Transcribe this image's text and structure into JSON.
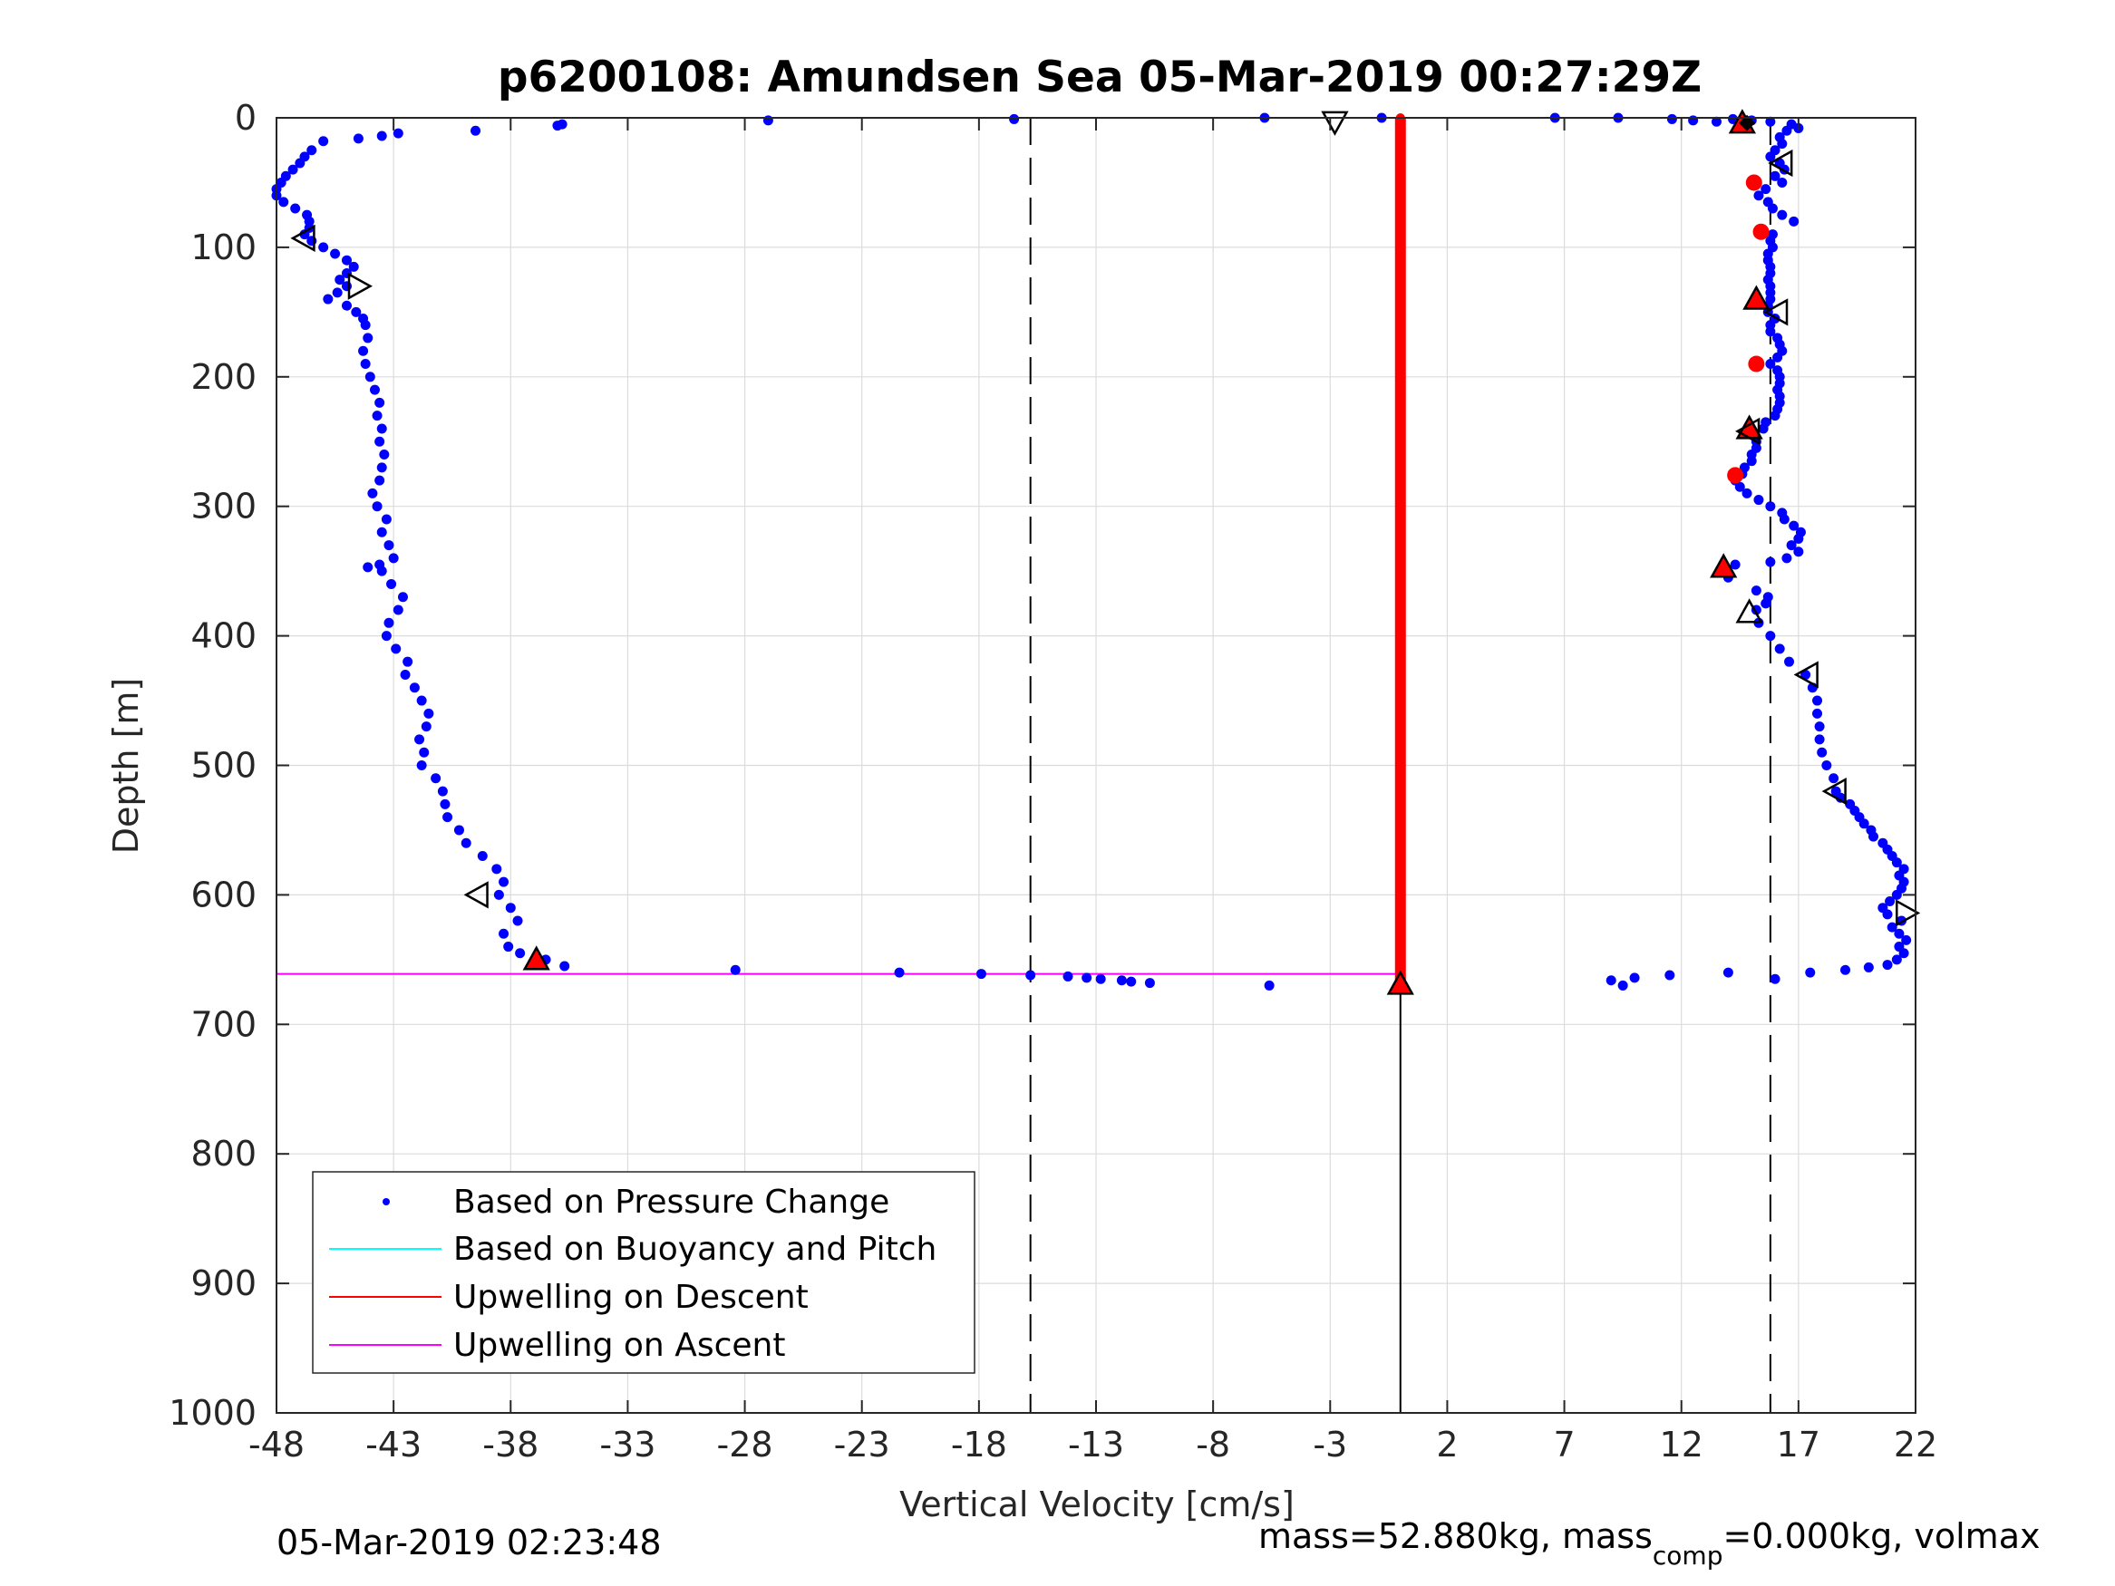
{
  "chart_data": {
    "type": "scatter",
    "title": "p6200108: Amundsen Sea 05-Mar-2019 00:27:29Z",
    "xlabel": "Vertical Velocity [cm/s]",
    "ylabel": "Depth [m]",
    "xlim": [
      -48,
      22
    ],
    "ylim": [
      0,
      1000
    ],
    "y_reversed": true,
    "x_ticks": [
      "-48",
      "-43",
      "-38",
      "-33",
      "-28",
      "-23",
      "-18",
      "-13",
      "-8",
      "-3",
      "2",
      "7",
      "12",
      "17",
      "22"
    ],
    "y_ticks": [
      "0",
      "100",
      "200",
      "300",
      "400",
      "500",
      "600",
      "700",
      "800",
      "900",
      "1000"
    ],
    "grid": true,
    "legend_position": "bottom-left",
    "colors": {
      "pressure": "#0000ff",
      "buoyancy": "#00ffff",
      "up_descent": "#ff0000",
      "up_ascent": "#ff00ff",
      "marker_fill": "#ff0000",
      "grid": "#dcdcdc"
    },
    "legend": [
      {
        "label": "Based on Pressure Change",
        "style": "dot",
        "color": "#0000ff"
      },
      {
        "label": "Based on Buoyancy and Pitch",
        "style": "line",
        "color": "#00ffff"
      },
      {
        "label": "Upwelling on Descent",
        "style": "line",
        "color": "#ff0000"
      },
      {
        "label": "Upwelling on Ascent",
        "style": "line",
        "color": "#ff00ff"
      }
    ],
    "reference_lines": [
      {
        "x": -15.8,
        "style": "dashed"
      },
      {
        "x": 15.8,
        "style": "dashed"
      }
    ],
    "descent_profile": [
      [
        -36,
        6
      ],
      [
        -39.5,
        10
      ],
      [
        -42.8,
        12
      ],
      [
        -43.5,
        14
      ],
      [
        -44.5,
        16
      ],
      [
        -46,
        18
      ],
      [
        -46.5,
        25
      ],
      [
        -46.8,
        30
      ],
      [
        -47,
        35
      ],
      [
        -47.3,
        40
      ],
      [
        -47.6,
        45
      ],
      [
        -47.8,
        50
      ],
      [
        -48,
        55
      ],
      [
        -48,
        60
      ],
      [
        -47.7,
        65
      ],
      [
        -47.2,
        70
      ],
      [
        -46.7,
        75
      ],
      [
        -46.6,
        80
      ],
      [
        -46.6,
        85
      ],
      [
        -46.8,
        90
      ],
      [
        -46.5,
        95
      ],
      [
        -46,
        100
      ],
      [
        -45.5,
        105
      ],
      [
        -45,
        110
      ],
      [
        -44.7,
        115
      ],
      [
        -45,
        120
      ],
      [
        -45.3,
        125
      ],
      [
        -45,
        130
      ],
      [
        -45.4,
        135
      ],
      [
        -45.8,
        140
      ],
      [
        -45,
        145
      ],
      [
        -44.6,
        150
      ],
      [
        -44.3,
        155
      ],
      [
        -44.2,
        160
      ],
      [
        -44.1,
        170
      ],
      [
        -44.3,
        180
      ],
      [
        -44.2,
        190
      ],
      [
        -44,
        200
      ],
      [
        -43.8,
        210
      ],
      [
        -43.6,
        220
      ],
      [
        -43.7,
        230
      ],
      [
        -43.5,
        240
      ],
      [
        -43.6,
        250
      ],
      [
        -43.4,
        260
      ],
      [
        -43.5,
        270
      ],
      [
        -43.6,
        280
      ],
      [
        -43.9,
        290
      ],
      [
        -43.7,
        300
      ],
      [
        -43.3,
        310
      ],
      [
        -43.5,
        320
      ],
      [
        -43.2,
        330
      ],
      [
        -43,
        340
      ],
      [
        -43.6,
        345
      ],
      [
        -44.1,
        347
      ],
      [
        -43.5,
        350
      ],
      [
        -43.1,
        360
      ],
      [
        -42.6,
        370
      ],
      [
        -42.8,
        380
      ],
      [
        -43.2,
        390
      ],
      [
        -43.3,
        400
      ],
      [
        -42.9,
        410
      ],
      [
        -42.4,
        420
      ],
      [
        -42.5,
        430
      ],
      [
        -42.1,
        440
      ],
      [
        -41.8,
        450
      ],
      [
        -41.5,
        460
      ],
      [
        -41.6,
        470
      ],
      [
        -41.9,
        480
      ],
      [
        -41.7,
        490
      ],
      [
        -41.8,
        500
      ],
      [
        -41.2,
        510
      ],
      [
        -40.9,
        520
      ],
      [
        -40.8,
        530
      ],
      [
        -40.7,
        540
      ],
      [
        -40.2,
        550
      ],
      [
        -39.9,
        560
      ],
      [
        -39.2,
        570
      ],
      [
        -38.6,
        580
      ],
      [
        -38.3,
        590
      ],
      [
        -38.5,
        600
      ],
      [
        -38,
        610
      ],
      [
        -37.7,
        620
      ],
      [
        -38.3,
        630
      ],
      [
        -38.1,
        640
      ],
      [
        -37.6,
        645
      ],
      [
        -36.5,
        650
      ],
      [
        -35.7,
        655
      ]
    ],
    "ascent_profile": [
      [
        14,
        660
      ],
      [
        11.5,
        662
      ],
      [
        10,
        664
      ],
      [
        9,
        666
      ],
      [
        9.5,
        670
      ],
      [
        16,
        665
      ],
      [
        17.5,
        660
      ],
      [
        19,
        658
      ],
      [
        20,
        656
      ],
      [
        20.8,
        654
      ],
      [
        21.2,
        650
      ],
      [
        21.5,
        645
      ],
      [
        21.3,
        640
      ],
      [
        21.6,
        635
      ],
      [
        21.3,
        630
      ],
      [
        21,
        625
      ],
      [
        21.4,
        620
      ],
      [
        20.8,
        615
      ],
      [
        20.6,
        610
      ],
      [
        20.9,
        605
      ],
      [
        21.2,
        600
      ],
      [
        21.4,
        595
      ],
      [
        21.5,
        590
      ],
      [
        21.3,
        585
      ],
      [
        21.5,
        580
      ],
      [
        21.2,
        575
      ],
      [
        21,
        570
      ],
      [
        20.8,
        565
      ],
      [
        20.6,
        560
      ],
      [
        20.2,
        555
      ],
      [
        20.1,
        550
      ],
      [
        19.8,
        545
      ],
      [
        19.6,
        540
      ],
      [
        19.4,
        535
      ],
      [
        19.2,
        530
      ],
      [
        18.8,
        525
      ],
      [
        18.6,
        520
      ],
      [
        18.5,
        510
      ],
      [
        18.2,
        500
      ],
      [
        18,
        490
      ],
      [
        17.9,
        480
      ],
      [
        17.9,
        470
      ],
      [
        17.8,
        460
      ],
      [
        17.8,
        450
      ],
      [
        17.6,
        440
      ],
      [
        17.3,
        430
      ],
      [
        16.6,
        420
      ],
      [
        16.2,
        410
      ],
      [
        15.8,
        400
      ],
      [
        15.3,
        390
      ],
      [
        15.2,
        380
      ],
      [
        15.6,
        375
      ],
      [
        15.7,
        370
      ],
      [
        15.2,
        365
      ],
      [
        14,
        355
      ],
      [
        13.8,
        350
      ],
      [
        14.3,
        345
      ],
      [
        15.8,
        343
      ],
      [
        16.5,
        340
      ],
      [
        17,
        335
      ],
      [
        16.7,
        330
      ],
      [
        17,
        325
      ],
      [
        17.1,
        320
      ],
      [
        16.8,
        315
      ],
      [
        16.4,
        310
      ],
      [
        16.3,
        305
      ],
      [
        15.8,
        300
      ],
      [
        15.3,
        295
      ],
      [
        14.8,
        290
      ],
      [
        14.5,
        285
      ],
      [
        14.3,
        280
      ],
      [
        14.6,
        275
      ],
      [
        14.7,
        270
      ],
      [
        15,
        265
      ],
      [
        15,
        260
      ],
      [
        15.2,
        255
      ],
      [
        15.2,
        250
      ],
      [
        15.1,
        245
      ],
      [
        15.5,
        240
      ],
      [
        15.6,
        235
      ],
      [
        16,
        230
      ],
      [
        16.1,
        225
      ],
      [
        16.2,
        220
      ],
      [
        16.2,
        215
      ],
      [
        16.1,
        210
      ],
      [
        16.2,
        205
      ],
      [
        16.2,
        200
      ],
      [
        16.1,
        195
      ],
      [
        15.8,
        190
      ],
      [
        16.1,
        185
      ],
      [
        16.3,
        180
      ],
      [
        16.2,
        175
      ],
      [
        16.1,
        170
      ],
      [
        15.8,
        165
      ],
      [
        15.8,
        160
      ],
      [
        16,
        155
      ],
      [
        15.7,
        150
      ],
      [
        15.7,
        145
      ],
      [
        15.8,
        140
      ],
      [
        15.8,
        135
      ],
      [
        15.8,
        130
      ],
      [
        15.7,
        125
      ],
      [
        15.8,
        120
      ],
      [
        15.8,
        115
      ],
      [
        15.7,
        110
      ],
      [
        15.7,
        105
      ],
      [
        15.9,
        100
      ],
      [
        15.8,
        95
      ],
      [
        15.9,
        90
      ],
      [
        16.8,
        80
      ],
      [
        16.3,
        75
      ],
      [
        15.9,
        70
      ],
      [
        15.7,
        65
      ],
      [
        15.3,
        60
      ],
      [
        15.6,
        55
      ],
      [
        16.3,
        50
      ],
      [
        16,
        45
      ],
      [
        16.4,
        40
      ],
      [
        16.2,
        35
      ],
      [
        15.8,
        30
      ],
      [
        16,
        25
      ],
      [
        16.3,
        20
      ],
      [
        16.2,
        15
      ],
      [
        16.5,
        10
      ],
      [
        17,
        8
      ],
      [
        16.7,
        5
      ],
      [
        15.8,
        3
      ],
      [
        15,
        2
      ],
      [
        14.2,
        1
      ]
    ],
    "surface_points": [
      [
        -35.8,
        5
      ],
      [
        -27,
        2
      ],
      [
        -16.5,
        1
      ],
      [
        -5.8,
        0
      ],
      [
        -0.8,
        0
      ],
      [
        6.6,
        0
      ],
      [
        9.3,
        0
      ],
      [
        11.6,
        1
      ],
      [
        12.5,
        2
      ],
      [
        13.5,
        3
      ]
    ],
    "bottom_points": [
      [
        -28.4,
        658
      ],
      [
        -21.4,
        660
      ],
      [
        -17.9,
        661
      ],
      [
        -15.8,
        662
      ],
      [
        -14.2,
        663
      ],
      [
        -13.4,
        664
      ],
      [
        -12.8,
        665
      ],
      [
        -11.9,
        666
      ],
      [
        -11.5,
        667
      ],
      [
        -10.7,
        668
      ],
      [
        -5.6,
        670
      ]
    ],
    "up_descent": {
      "x": 0,
      "y_range": [
        0,
        670
      ]
    },
    "up_ascent": [
      {
        "x": [
          -48,
          0
        ],
        "y": 0
      },
      {
        "x": [
          -48,
          0
        ],
        "y": 661
      }
    ],
    "red_dots": [
      [
        15.1,
        50
      ],
      [
        15.4,
        88
      ],
      [
        15.2,
        190
      ],
      [
        14.3,
        276
      ]
    ],
    "red_triangles_up": [
      [
        -36.9,
        650
      ],
      [
        0,
        669
      ],
      [
        14.6,
        4
      ],
      [
        15.2,
        140
      ],
      [
        14.9,
        240
      ],
      [
        13.8,
        347
      ]
    ],
    "open_triangles_left": [
      [
        -46.8,
        93
      ],
      [
        -39.4,
        600
      ],
      [
        16.3,
        35
      ],
      [
        16.1,
        150
      ],
      [
        14.9,
        242
      ],
      [
        17.4,
        430
      ],
      [
        18.6,
        520
      ]
    ],
    "open_triangles_right": [
      [
        -44.5,
        130
      ],
      [
        21.6,
        614
      ]
    ],
    "open_triangles_down": [
      [
        -2.8,
        3
      ]
    ],
    "open_triangles_up": [
      [
        14.9,
        382
      ]
    ],
    "black_diamond": [
      [
        14.8,
        4
      ]
    ]
  },
  "footer": {
    "timestamp": "05-Mar-2019 02:23:48",
    "mass_text": "mass=52.880kg, mass",
    "mass_sub": "comp",
    "mass_rest": "=0.000kg, volmax"
  }
}
